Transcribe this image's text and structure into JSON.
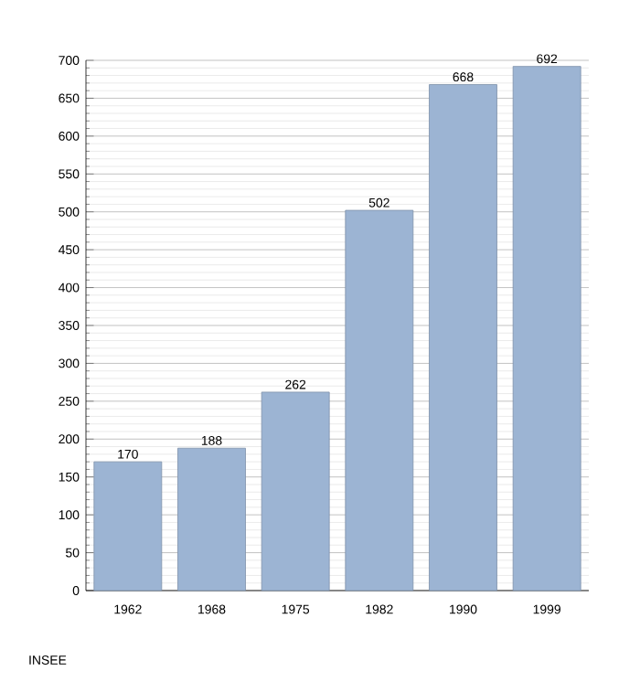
{
  "chart_data": {
    "type": "bar",
    "categories": [
      "1962",
      "1968",
      "1975",
      "1982",
      "1990",
      "1999"
    ],
    "values": [
      170,
      188,
      262,
      502,
      668,
      692
    ],
    "color": "#9cb4d3",
    "data_labels": true,
    "grid": "y",
    "ylim": [
      0,
      700
    ],
    "yticks": [
      0,
      50,
      100,
      150,
      200,
      250,
      300,
      350,
      400,
      450,
      500,
      550,
      600,
      650,
      700
    ],
    "annotations": [
      "INSEE"
    ]
  }
}
